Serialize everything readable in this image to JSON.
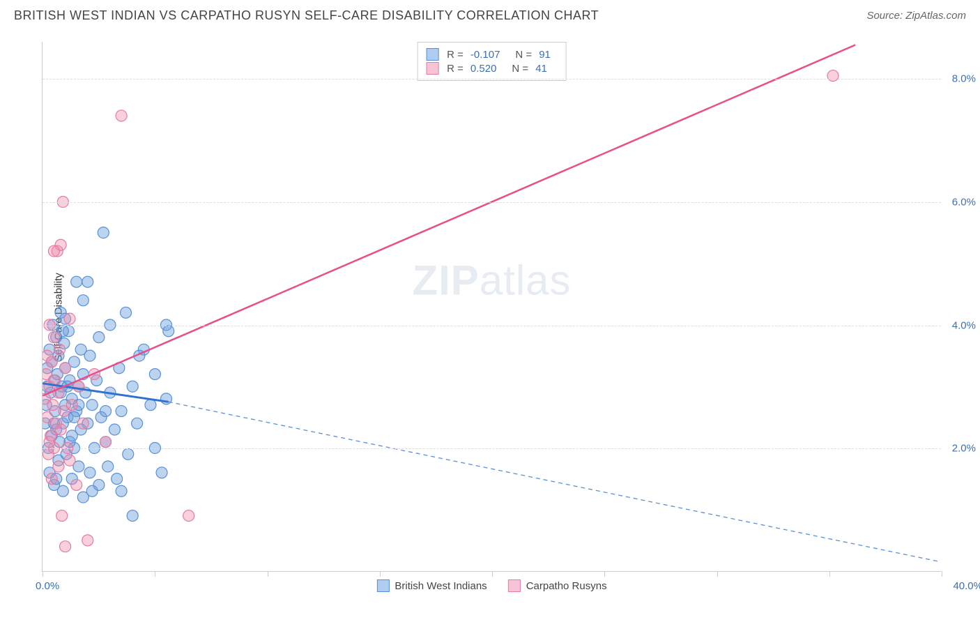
{
  "header": {
    "title": "BRITISH WEST INDIAN VS CARPATHO RUSYN SELF-CARE DISABILITY CORRELATION CHART",
    "source": "Source: ZipAtlas.com"
  },
  "chart": {
    "type": "scatter",
    "ylabel": "Self-Care Disability",
    "watermark_bold": "ZIP",
    "watermark_light": "atlas",
    "xlim": [
      0,
      40
    ],
    "ylim": [
      0,
      8.6
    ],
    "x_tick_positions": [
      0,
      5,
      10,
      15,
      20,
      25,
      30,
      35,
      40
    ],
    "x_tick_labels_shown": {
      "left": "0.0%",
      "right": "40.0%"
    },
    "y_ticks": [
      2.0,
      4.0,
      6.0,
      8.0
    ],
    "y_tick_labels": [
      "2.0%",
      "4.0%",
      "6.0%",
      "8.0%"
    ],
    "grid_color": "#dddddd",
    "axis_color": "#cccccc",
    "tick_label_color": "#3b6fb6",
    "background_color": "#ffffff",
    "series": [
      {
        "name": "British West Indians",
        "color_fill": "rgba(108,160,220,0.45)",
        "color_stroke": "#5a8fd6",
        "swatch_fill": "#aecdf0",
        "swatch_border": "#5a8fd6",
        "stats": {
          "R": "-0.107",
          "N": "91"
        },
        "trend": {
          "x1": 0,
          "y1": 3.05,
          "x2": 5.6,
          "y2": 2.75,
          "solid": true,
          "stroke_width": 3,
          "color": "#2f72d1"
        },
        "trend_ext": {
          "x1": 5.6,
          "y1": 2.75,
          "x2": 40,
          "y2": 0.15,
          "dash": "6,5",
          "stroke_width": 1.3,
          "color": "#5a8fd6"
        },
        "marker_radius": 8,
        "points": [
          [
            0.1,
            2.4
          ],
          [
            0.15,
            2.7
          ],
          [
            0.2,
            3.0
          ],
          [
            0.2,
            3.3
          ],
          [
            0.25,
            2.0
          ],
          [
            0.3,
            3.6
          ],
          [
            0.3,
            1.6
          ],
          [
            0.35,
            2.9
          ],
          [
            0.4,
            3.4
          ],
          [
            0.4,
            2.2
          ],
          [
            0.45,
            4.0
          ],
          [
            0.5,
            3.1
          ],
          [
            0.5,
            1.4
          ],
          [
            0.55,
            2.6
          ],
          [
            0.6,
            3.8
          ],
          [
            0.6,
            2.3
          ],
          [
            0.65,
            3.2
          ],
          [
            0.7,
            1.8
          ],
          [
            0.7,
            3.5
          ],
          [
            0.75,
            2.1
          ],
          [
            0.8,
            2.9
          ],
          [
            0.8,
            4.2
          ],
          [
            0.85,
            3.0
          ],
          [
            0.9,
            2.4
          ],
          [
            0.9,
            1.3
          ],
          [
            0.95,
            3.7
          ],
          [
            1.0,
            2.7
          ],
          [
            1.0,
            3.3
          ],
          [
            1.05,
            1.9
          ],
          [
            1.1,
            2.5
          ],
          [
            1.15,
            3.9
          ],
          [
            1.2,
            2.1
          ],
          [
            1.2,
            3.1
          ],
          [
            1.3,
            1.5
          ],
          [
            1.3,
            2.8
          ],
          [
            1.4,
            3.4
          ],
          [
            1.4,
            2.0
          ],
          [
            1.5,
            4.7
          ],
          [
            1.5,
            2.6
          ],
          [
            1.6,
            3.0
          ],
          [
            1.6,
            1.7
          ],
          [
            1.7,
            2.3
          ],
          [
            1.8,
            3.2
          ],
          [
            1.8,
            1.2
          ],
          [
            1.9,
            2.9
          ],
          [
            2.0,
            4.7
          ],
          [
            2.0,
            2.4
          ],
          [
            2.1,
            1.6
          ],
          [
            2.1,
            3.5
          ],
          [
            2.2,
            2.7
          ],
          [
            2.3,
            2.0
          ],
          [
            2.4,
            3.1
          ],
          [
            2.5,
            1.4
          ],
          [
            2.5,
            3.8
          ],
          [
            2.6,
            2.5
          ],
          [
            2.7,
            5.5
          ],
          [
            2.8,
            2.1
          ],
          [
            2.9,
            1.7
          ],
          [
            3.0,
            2.9
          ],
          [
            3.0,
            4.0
          ],
          [
            3.2,
            2.3
          ],
          [
            3.3,
            1.5
          ],
          [
            3.4,
            3.3
          ],
          [
            3.5,
            2.6
          ],
          [
            3.7,
            4.2
          ],
          [
            3.8,
            1.9
          ],
          [
            4.0,
            3.0
          ],
          [
            4.0,
            0.9
          ],
          [
            4.2,
            2.4
          ],
          [
            4.5,
            3.6
          ],
          [
            4.8,
            2.7
          ],
          [
            5.0,
            3.2
          ],
          [
            5.0,
            2.0
          ],
          [
            5.3,
            1.6
          ],
          [
            5.5,
            4.0
          ],
          [
            5.5,
            2.8
          ],
          [
            5.6,
            3.9
          ],
          [
            1.0,
            4.1
          ],
          [
            1.3,
            2.2
          ],
          [
            1.7,
            3.6
          ],
          [
            0.5,
            2.4
          ],
          [
            0.6,
            1.5
          ],
          [
            0.9,
            3.9
          ],
          [
            1.1,
            3.0
          ],
          [
            1.4,
            2.5
          ],
          [
            1.6,
            2.7
          ],
          [
            2.2,
            1.3
          ],
          [
            2.8,
            2.6
          ],
          [
            3.5,
            1.3
          ],
          [
            4.3,
            3.5
          ],
          [
            1.8,
            4.4
          ]
        ]
      },
      {
        "name": "Carpatho Rusyns",
        "color_fill": "rgba(240,140,170,0.40)",
        "color_stroke": "#e67aa3",
        "swatch_fill": "#f6c4d6",
        "swatch_border": "#e67aa3",
        "stats": {
          "R": "0.520",
          "N": "41"
        },
        "trend": {
          "x1": 0,
          "y1": 2.85,
          "x2": 36.2,
          "y2": 8.55,
          "solid": true,
          "stroke_width": 2.5,
          "color": "#e84f8a"
        },
        "marker_radius": 8,
        "points": [
          [
            0.1,
            2.8
          ],
          [
            0.15,
            3.2
          ],
          [
            0.2,
            2.5
          ],
          [
            0.2,
            3.5
          ],
          [
            0.25,
            1.9
          ],
          [
            0.3,
            3.0
          ],
          [
            0.3,
            4.0
          ],
          [
            0.35,
            2.2
          ],
          [
            0.4,
            3.4
          ],
          [
            0.4,
            1.5
          ],
          [
            0.45,
            2.7
          ],
          [
            0.5,
            3.8
          ],
          [
            0.5,
            2.0
          ],
          [
            0.55,
            3.1
          ],
          [
            0.6,
            2.4
          ],
          [
            0.65,
            5.2
          ],
          [
            0.7,
            1.7
          ],
          [
            0.7,
            2.9
          ],
          [
            0.75,
            3.6
          ],
          [
            0.8,
            5.3
          ],
          [
            0.8,
            2.3
          ],
          [
            0.85,
            0.9
          ],
          [
            0.9,
            6.0
          ],
          [
            0.95,
            2.6
          ],
          [
            1.0,
            3.3
          ],
          [
            1.0,
            0.4
          ],
          [
            1.1,
            2.0
          ],
          [
            1.2,
            4.1
          ],
          [
            1.3,
            2.7
          ],
          [
            1.5,
            1.4
          ],
          [
            1.6,
            3.0
          ],
          [
            1.8,
            2.4
          ],
          [
            2.0,
            0.5
          ],
          [
            2.3,
            3.2
          ],
          [
            2.8,
            2.1
          ],
          [
            3.5,
            7.4
          ],
          [
            6.5,
            0.9
          ],
          [
            0.5,
            5.2
          ],
          [
            1.2,
            1.8
          ],
          [
            0.3,
            2.1
          ],
          [
            35.2,
            8.05
          ]
        ]
      }
    ]
  }
}
